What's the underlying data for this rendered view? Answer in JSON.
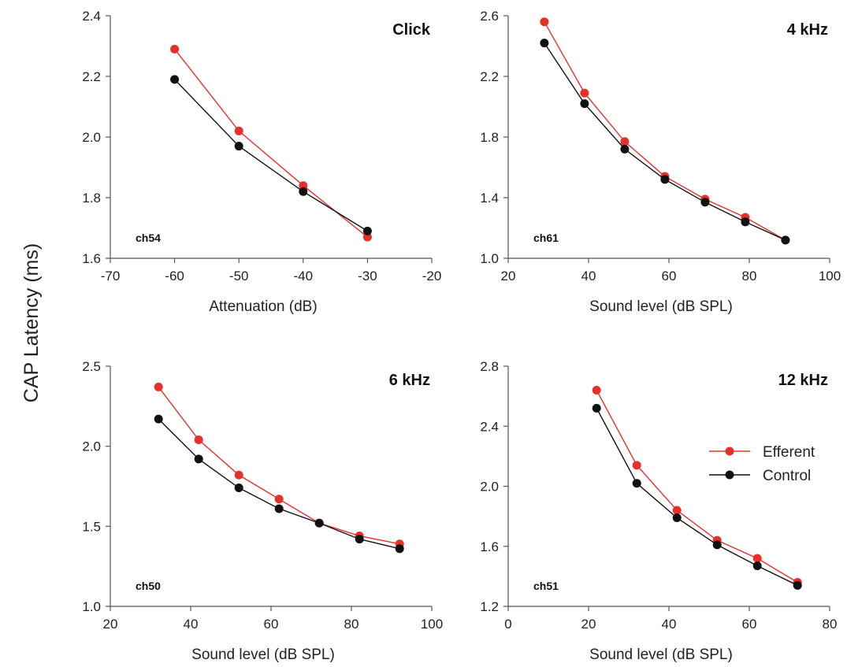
{
  "figure": {
    "ylabel": "CAP Latency (ms)"
  },
  "legend": {
    "items": [
      {
        "label": "Efferent",
        "color": "#e8302a"
      },
      {
        "label": "Control",
        "color": "#111111"
      }
    ]
  },
  "chart_data": [
    {
      "type": "line",
      "title": "Click",
      "panel_label": "ch54",
      "xlabel": "Attenuation (dB)",
      "xlim": [
        -70,
        -20
      ],
      "xticks": [
        -70,
        -60,
        -50,
        -40,
        -30,
        -20
      ],
      "xtick_labels": [
        "-70",
        "-60",
        "-50",
        "-40",
        "-30",
        "-20"
      ],
      "ylim": [
        1.6,
        2.4
      ],
      "yticks": [
        1.6,
        1.8,
        2.0,
        2.2,
        2.4
      ],
      "ytick_labels": [
        "1.6",
        "1.8",
        "2.0",
        "2.2",
        "2.4"
      ],
      "series": [
        {
          "name": "Efferent",
          "color": "#e8302a",
          "x": [
            -60,
            -50,
            -40,
            -30
          ],
          "y": [
            2.29,
            2.02,
            1.84,
            1.67
          ]
        },
        {
          "name": "Control",
          "color": "#111111",
          "x": [
            -60,
            -50,
            -40,
            -30
          ],
          "y": [
            2.19,
            1.97,
            1.82,
            1.69
          ]
        }
      ]
    },
    {
      "type": "line",
      "title": "4 kHz",
      "panel_label": "ch61",
      "xlabel": "Sound level (dB SPL)",
      "xlim": [
        20,
        100
      ],
      "xticks": [
        20,
        40,
        60,
        80,
        100
      ],
      "xtick_labels": [
        "20",
        "40",
        "60",
        "80",
        "100"
      ],
      "ylim": [
        1.0,
        2.6
      ],
      "yticks": [
        1.0,
        1.4,
        1.8,
        2.2,
        2.6
      ],
      "ytick_labels": [
        "1.0",
        "1.4",
        "1.8",
        "2.2",
        "2.6"
      ],
      "series": [
        {
          "name": "Efferent",
          "color": "#e8302a",
          "x": [
            29,
            39,
            49,
            59,
            69,
            79,
            89
          ],
          "y": [
            2.56,
            2.09,
            1.77,
            1.54,
            1.39,
            1.27,
            1.12
          ]
        },
        {
          "name": "Control",
          "color": "#111111",
          "x": [
            29,
            39,
            49,
            59,
            69,
            79,
            89
          ],
          "y": [
            2.42,
            2.02,
            1.72,
            1.52,
            1.37,
            1.24,
            1.12
          ]
        }
      ]
    },
    {
      "type": "line",
      "title": "6 kHz",
      "panel_label": "ch50",
      "xlabel": "Sound level (dB SPL)",
      "xlim": [
        20,
        100
      ],
      "xticks": [
        20,
        40,
        60,
        80,
        100
      ],
      "xtick_labels": [
        "20",
        "40",
        "60",
        "80",
        "100"
      ],
      "ylim": [
        1.0,
        2.5
      ],
      "yticks": [
        1.0,
        1.5,
        2.0,
        2.5
      ],
      "ytick_labels": [
        "1.0",
        "1.5",
        "2.0",
        "2.5"
      ],
      "series": [
        {
          "name": "Efferent",
          "color": "#e8302a",
          "x": [
            32,
            42,
            52,
            62,
            72,
            82,
            92
          ],
          "y": [
            2.37,
            2.04,
            1.82,
            1.67,
            1.52,
            1.44,
            1.39
          ]
        },
        {
          "name": "Control",
          "color": "#111111",
          "x": [
            32,
            42,
            52,
            62,
            72,
            82,
            92
          ],
          "y": [
            2.17,
            1.92,
            1.74,
            1.61,
            1.52,
            1.42,
            1.36
          ]
        }
      ]
    },
    {
      "type": "line",
      "title": "12 kHz",
      "panel_label": "ch51",
      "xlabel": "Sound level (dB SPL)",
      "xlim": [
        0,
        80
      ],
      "xticks": [
        0,
        20,
        40,
        60,
        80
      ],
      "xtick_labels": [
        "0",
        "20",
        "40",
        "60",
        "80"
      ],
      "ylim": [
        1.2,
        2.8
      ],
      "yticks": [
        1.2,
        1.6,
        2.0,
        2.4,
        2.8
      ],
      "ytick_labels": [
        "1.2",
        "1.6",
        "2.0",
        "2.4",
        "2.8"
      ],
      "legend": "right",
      "series": [
        {
          "name": "Efferent",
          "color": "#e8302a",
          "x": [
            22,
            32,
            42,
            52,
            62,
            72
          ],
          "y": [
            2.64,
            2.14,
            1.84,
            1.64,
            1.52,
            1.36
          ]
        },
        {
          "name": "Control",
          "color": "#111111",
          "x": [
            22,
            32,
            42,
            52,
            62,
            72
          ],
          "y": [
            2.52,
            2.02,
            1.79,
            1.61,
            1.47,
            1.34
          ]
        }
      ]
    }
  ]
}
